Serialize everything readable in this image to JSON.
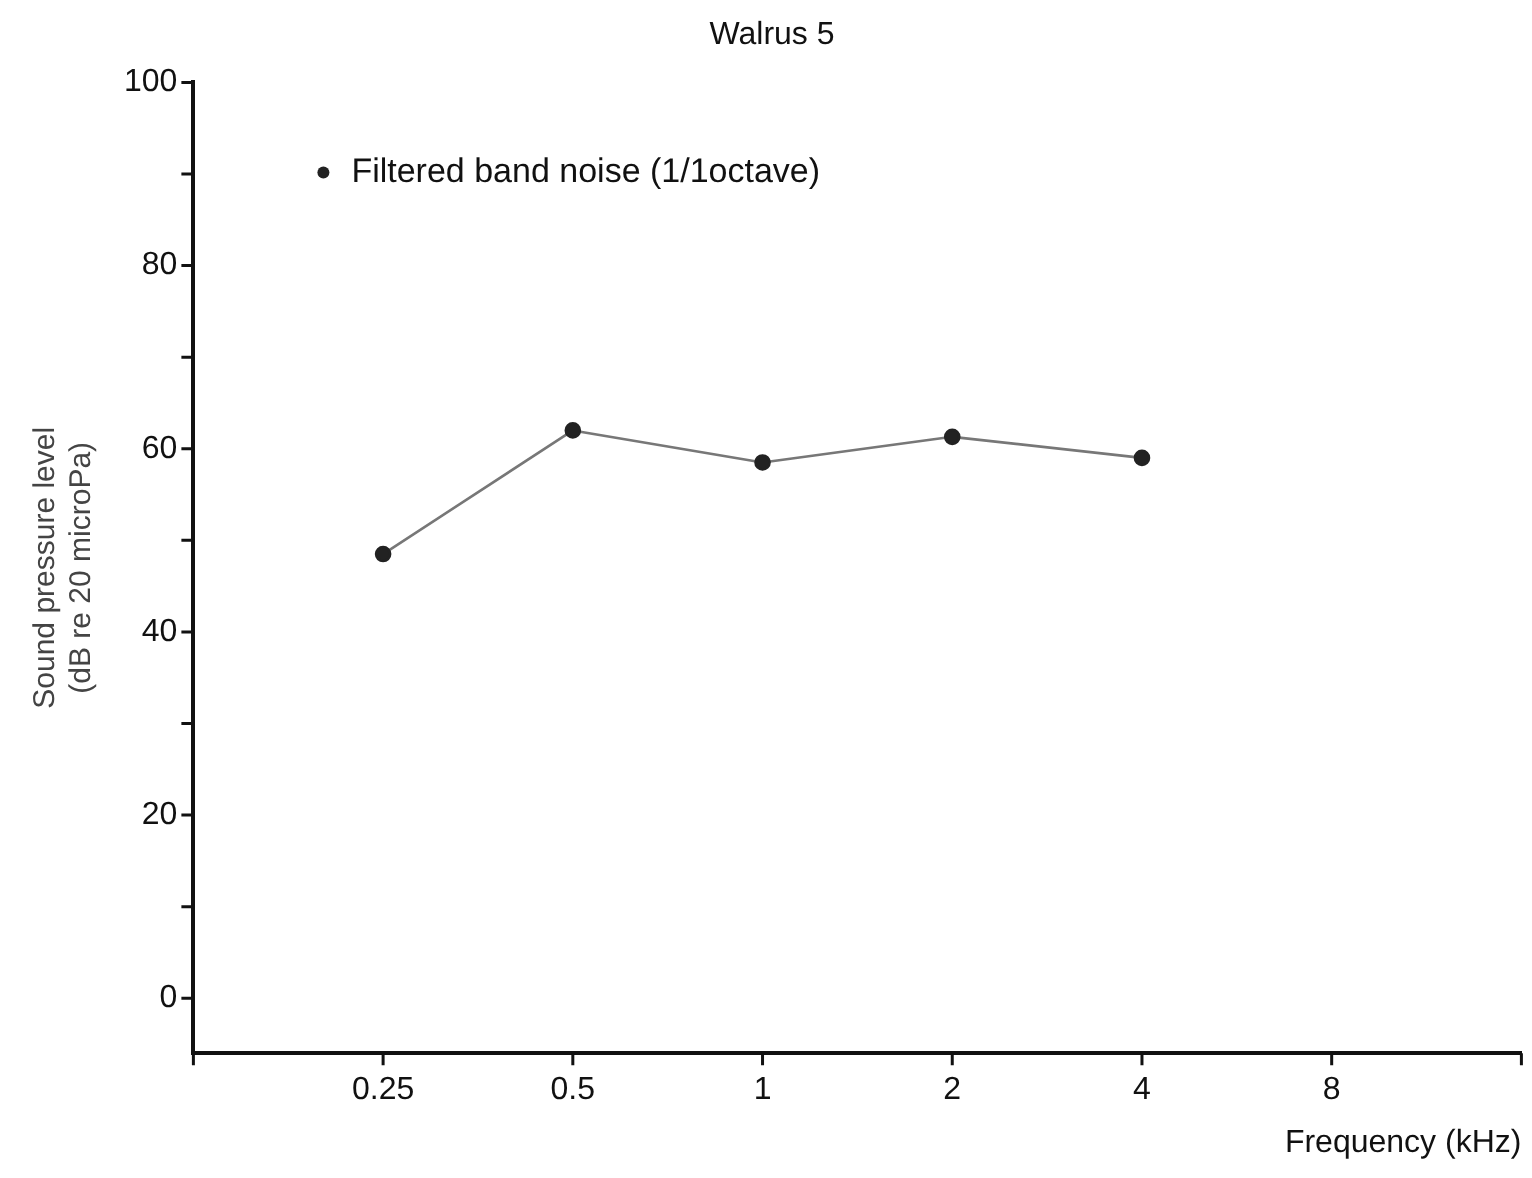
{
  "chart_data": {
    "type": "line",
    "title": "Walrus 5",
    "xlabel": "Frequency (kHz)",
    "ylabel": "Sound pressure level\n(dB re 20 microPa)",
    "categories": [
      null,
      "0.25",
      "0.5",
      "1",
      "2",
      "4",
      "8",
      null
    ],
    "series": [
      {
        "name": "Filtered band noise (1/1octave)",
        "color": "#222222",
        "values": [
          null,
          48.5,
          62,
          58.5,
          61.3,
          59,
          null,
          null
        ]
      }
    ],
    "ylim": [
      -6,
      100
    ],
    "yticks": [
      0,
      {
        "value": 10,
        "label": null
      },
      20,
      {
        "value": 30,
        "label": null
      },
      40,
      {
        "value": 50,
        "label": null
      },
      60,
      {
        "value": 70,
        "label": null
      },
      80,
      {
        "value": 90,
        "label": null
      },
      100
    ],
    "grid": false,
    "legend": "top left",
    "marker": "circle",
    "line_style": "solid"
  }
}
